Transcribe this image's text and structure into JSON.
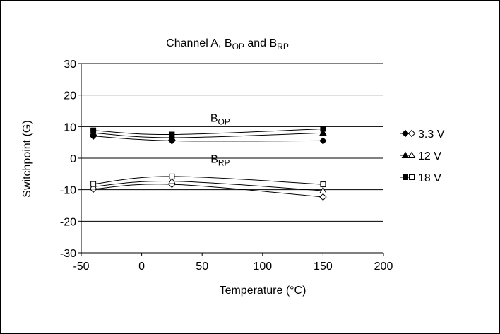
{
  "chart_data": {
    "type": "line",
    "title": "Channel A, B",
    "title_parts": [
      "Channel A, B",
      "OP",
      " and B",
      "RP"
    ],
    "xlabel": "Temperature (°C)",
    "ylabel": "Switchpoint (G)",
    "xlim": [
      -50,
      200
    ],
    "ylim": [
      -30,
      30
    ],
    "x_ticks": [
      -50,
      0,
      50,
      100,
      150,
      200
    ],
    "y_ticks": [
      -30,
      -20,
      -10,
      0,
      10,
      20,
      30
    ],
    "x_tick_labels": [
      "-50",
      "0",
      "50",
      "100",
      "150",
      "200"
    ],
    "y_tick_labels": [
      "-30",
      "-20",
      "-10",
      "0",
      "10",
      "20",
      "30"
    ],
    "grid": "horizontal",
    "legend_position": "right",
    "annotations": [
      {
        "main": "B",
        "sub": "OP",
        "x": 65,
        "y": 11.5
      },
      {
        "main": "B",
        "sub": "RP",
        "x": 65,
        "y": -1.5
      }
    ],
    "x": [
      -40,
      25,
      150
    ],
    "series": [
      {
        "name": "3.3 V",
        "group": "BOP",
        "marker": "diamond",
        "filled": true,
        "values": [
          7.0,
          5.5,
          5.5
        ]
      },
      {
        "name": "12 V",
        "group": "BOP",
        "marker": "triangle",
        "filled": true,
        "values": [
          8.0,
          6.5,
          8.0
        ]
      },
      {
        "name": "18 V",
        "group": "BOP",
        "marker": "square",
        "filled": true,
        "values": [
          8.8,
          7.5,
          9.3
        ]
      },
      {
        "name": "3.3 V",
        "group": "BRP",
        "marker": "diamond",
        "filled": false,
        "values": [
          -9.8,
          -8.3,
          -12.3
        ]
      },
      {
        "name": "12 V",
        "group": "BRP",
        "marker": "triangle",
        "filled": false,
        "values": [
          -9.0,
          -7.3,
          -10.3
        ]
      },
      {
        "name": "18 V",
        "group": "BRP",
        "marker": "square",
        "filled": false,
        "values": [
          -8.2,
          -5.8,
          -8.3
        ]
      }
    ],
    "legend": [
      {
        "label": "3.3 V",
        "marker": "diamond"
      },
      {
        "label": "12 V",
        "marker": "triangle"
      },
      {
        "label": "18 V",
        "marker": "square"
      }
    ]
  }
}
